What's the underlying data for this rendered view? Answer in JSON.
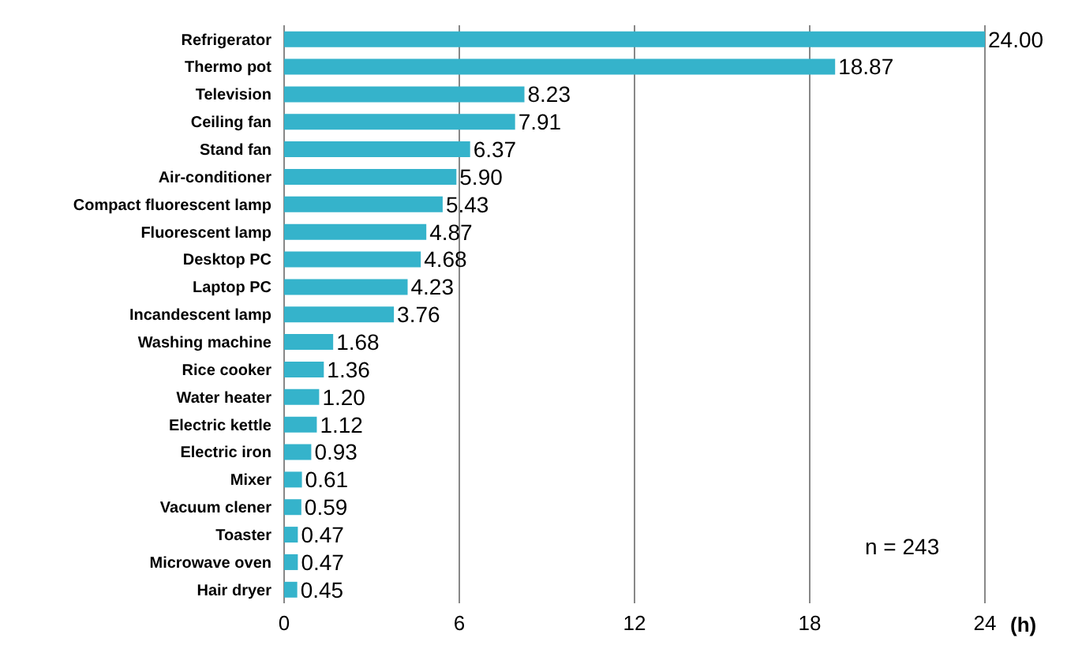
{
  "chart_data": {
    "type": "bar",
    "orientation": "horizontal",
    "categories": [
      "Refrigerator",
      "Thermo pot",
      "Television",
      "Ceiling fan",
      "Stand fan",
      "Air-conditioner",
      "Compact fluorescent lamp",
      "Fluorescent lamp",
      "Desktop PC",
      "Laptop PC",
      "Incandescent lamp",
      "Washing machine",
      "Rice cooker",
      "Water heater",
      "Electric kettle",
      "Electric iron",
      "Mixer",
      "Vacuum clener",
      "Toaster",
      "Microwave oven",
      "Hair dryer"
    ],
    "values": [
      24.0,
      18.87,
      8.23,
      7.91,
      6.37,
      5.9,
      5.43,
      4.87,
      4.68,
      4.23,
      3.76,
      1.68,
      1.36,
      1.2,
      1.12,
      0.93,
      0.61,
      0.59,
      0.47,
      0.47,
      0.45
    ],
    "value_labels": [
      "24.00",
      "18.87",
      "8.23",
      "7.91",
      "6.37",
      "5.90",
      "5.43",
      "4.87",
      "4.68",
      "4.23",
      "3.76",
      "1.68",
      "1.36",
      "1.20",
      "1.12",
      "0.93",
      "0.61",
      "0.59",
      "0.47",
      "0.47",
      "0.45"
    ],
    "color": "#35b3cb",
    "xlim": [
      0,
      24
    ],
    "xticks": [
      0,
      6,
      12,
      18,
      24
    ],
    "xlabel": "(h)",
    "grid": "x",
    "annotations": [
      "n = 243"
    ]
  }
}
